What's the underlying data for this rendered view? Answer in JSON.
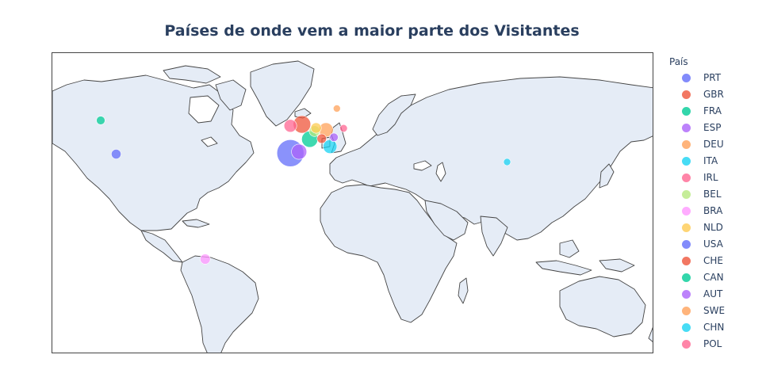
{
  "chart_data": {
    "type": "scatter_geo",
    "projection": "equirectangular",
    "title": "Países de onde vem a maior parte dos Visitantes",
    "legend_title": "País",
    "legend_placement": "right",
    "land_color": "#e5ecf6",
    "coastline_color": "#444444",
    "series": [
      {
        "name": "PRT",
        "color": "#636efa",
        "lon": -8.0,
        "lat": 39.5,
        "size": 1.0
      },
      {
        "name": "GBR",
        "color": "#ef553b",
        "lon": -2.0,
        "lat": 54.0,
        "size": 0.42
      },
      {
        "name": "FRA",
        "color": "#00cc96",
        "lon": 2.0,
        "lat": 46.5,
        "size": 0.36
      },
      {
        "name": "ESP",
        "color": "#ab63fa",
        "lon": -3.5,
        "lat": 40.2,
        "size": 0.32
      },
      {
        "name": "DEU",
        "color": "#ffa15a",
        "lon": 10.4,
        "lat": 51.2,
        "size": 0.28
      },
      {
        "name": "ITA",
        "color": "#19d3f3",
        "lon": 12.5,
        "lat": 42.8,
        "size": 0.26
      },
      {
        "name": "IRL",
        "color": "#ff6692",
        "lon": -8.0,
        "lat": 53.3,
        "size": 0.22
      },
      {
        "name": "BEL",
        "color": "#b6e880",
        "lon": 4.5,
        "lat": 50.6,
        "size": 0.16
      },
      {
        "name": "BRA",
        "color": "#ff97ff",
        "lon": -52.0,
        "lat": -14.0,
        "size": 0.14
      },
      {
        "name": "NLD",
        "color": "#fecb52",
        "lon": 5.3,
        "lat": 52.2,
        "size": 0.15
      },
      {
        "name": "USA",
        "color": "#636efa",
        "lon": -98.0,
        "lat": 39.0,
        "size": 0.13
      },
      {
        "name": "CHE",
        "color": "#ef553b",
        "lon": 8.2,
        "lat": 46.8,
        "size": 0.12
      },
      {
        "name": "CAN",
        "color": "#00cc96",
        "lon": -106.0,
        "lat": 56.0,
        "size": 0.1
      },
      {
        "name": "AUT",
        "color": "#ab63fa",
        "lon": 14.5,
        "lat": 47.5,
        "size": 0.1
      },
      {
        "name": "SWE",
        "color": "#ffa15a",
        "lon": 16.0,
        "lat": 62.0,
        "size": 0.07
      },
      {
        "name": "CHN",
        "color": "#19d3f3",
        "lon": 104.0,
        "lat": 35.0,
        "size": 0.07
      },
      {
        "name": "POL",
        "color": "#ff6692",
        "lon": 19.5,
        "lat": 52.0,
        "size": 0.08
      }
    ]
  }
}
